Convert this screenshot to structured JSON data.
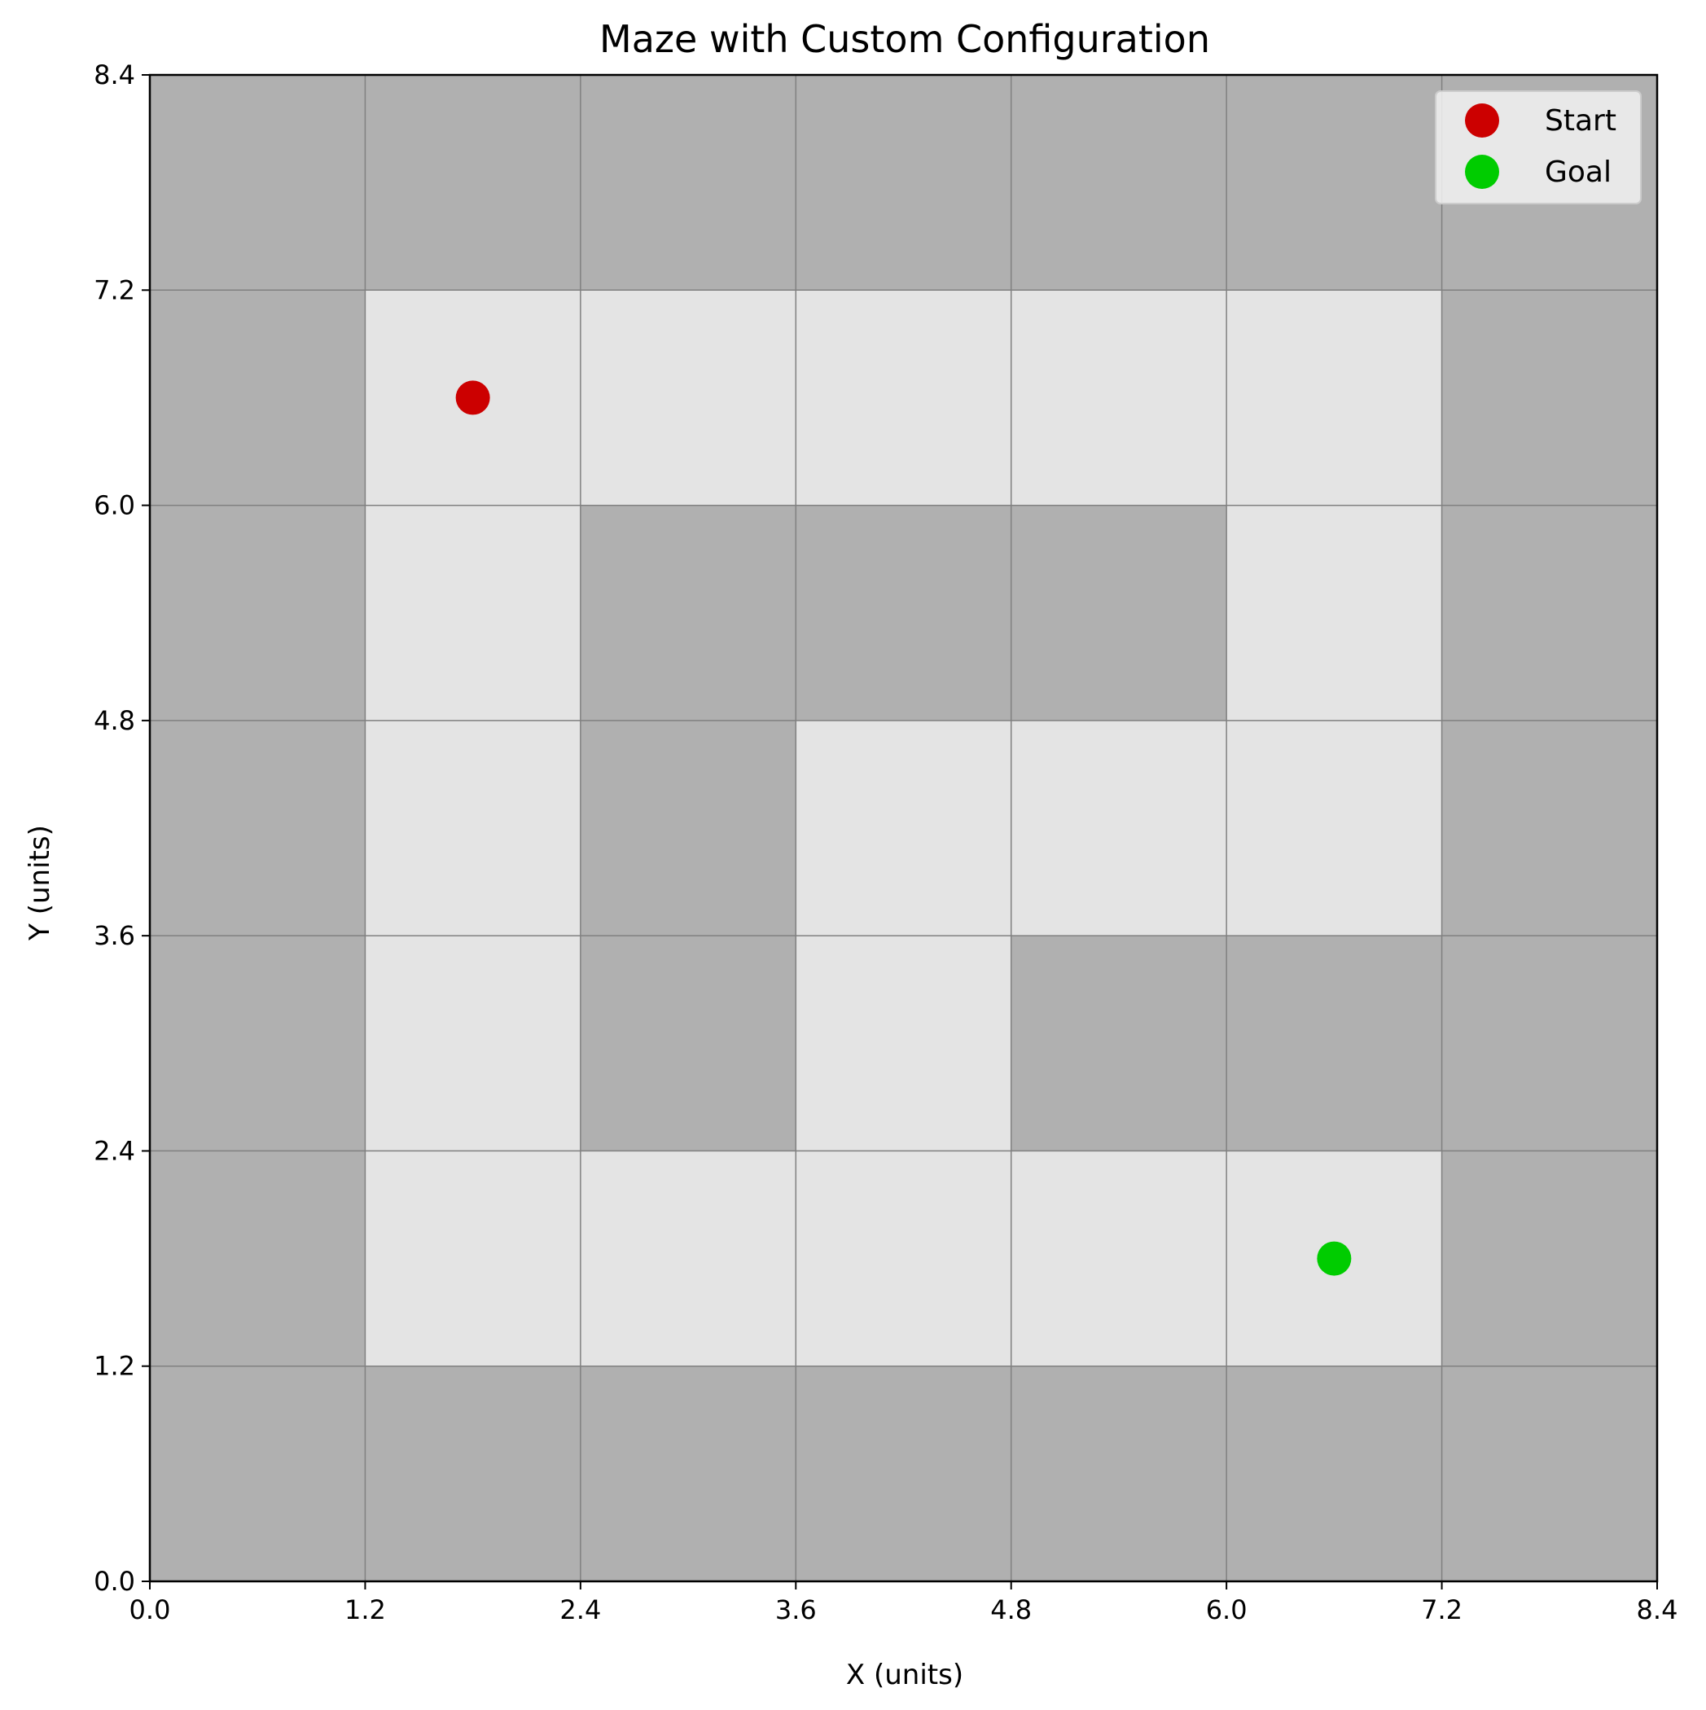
{
  "chart_data": {
    "type": "heatmap",
    "title": "Maze with Custom Configuration",
    "xlabel": "X (units)",
    "ylabel": "Y (units)",
    "xlim": [
      0,
      8.4
    ],
    "ylim": [
      0,
      8.4
    ],
    "xticks": [
      "0.0",
      "1.2",
      "2.4",
      "3.6",
      "4.8",
      "6.0",
      "7.2",
      "8.4"
    ],
    "yticks": [
      "0.0",
      "1.2",
      "2.4",
      "3.6",
      "4.8",
      "6.0",
      "7.2",
      "8.4"
    ],
    "cell_size": 1.2,
    "grid": true,
    "legend_position": "top-right",
    "colors": {
      "wall": "#b0b0b0",
      "path": "#e4e4e4",
      "gridline": "#808080",
      "start": "#cc0000",
      "goal": "#00cc00"
    },
    "maze_rows_top_to_bottom": [
      [
        1,
        1,
        1,
        1,
        1,
        1,
        1
      ],
      [
        1,
        0,
        0,
        0,
        0,
        0,
        1
      ],
      [
        1,
        0,
        1,
        1,
        1,
        0,
        1
      ],
      [
        1,
        0,
        1,
        0,
        0,
        0,
        1
      ],
      [
        1,
        0,
        1,
        0,
        1,
        1,
        1
      ],
      [
        1,
        0,
        0,
        0,
        0,
        0,
        1
      ],
      [
        1,
        1,
        1,
        1,
        1,
        1,
        1
      ]
    ],
    "series": [
      {
        "name": "Start",
        "x": 1.8,
        "y": 6.6
      },
      {
        "name": "Goal",
        "x": 6.6,
        "y": 1.8
      }
    ]
  }
}
